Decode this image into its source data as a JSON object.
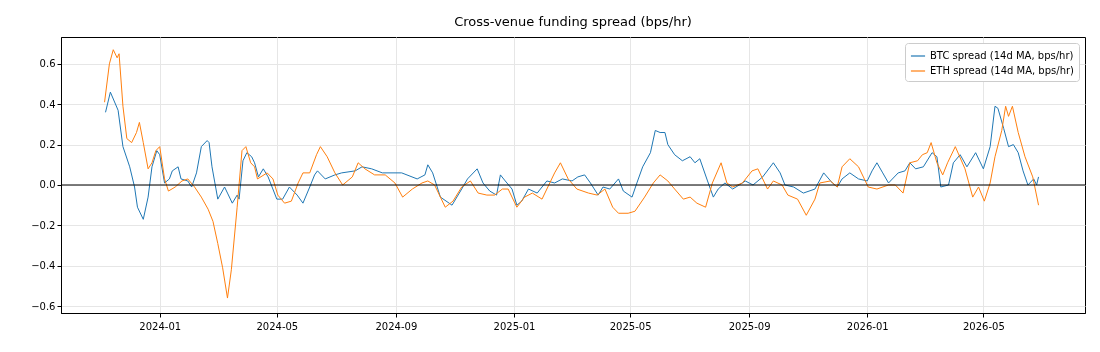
{
  "chart_data": {
    "type": "line",
    "title": "Cross-venue funding spread (bps/hr)",
    "xlim": [
      "2023-09-21",
      "2026-08-14"
    ],
    "xticks": [
      {
        "value": "2024-01",
        "label": "2024-01"
      },
      {
        "value": "2024-05",
        "label": "2024-05"
      },
      {
        "value": "2024-09",
        "label": "2024-09"
      },
      {
        "value": "2025-01",
        "label": "2025-01"
      },
      {
        "value": "2025-05",
        "label": "2025-05"
      },
      {
        "value": "2025-09",
        "label": "2025-09"
      },
      {
        "value": "2026-01",
        "label": "2026-01"
      },
      {
        "value": "2026-05",
        "label": "2026-05"
      }
    ],
    "ylim": [
      -0.634,
      0.733
    ],
    "yticks": [
      {
        "value": -0.6,
        "label": "−0.6"
      },
      {
        "value": -0.4,
        "label": "−0.4"
      },
      {
        "value": -0.2,
        "label": "−0.2"
      },
      {
        "value": 0,
        "label": "0.0"
      },
      {
        "value": 0.2,
        "label": "0.2"
      },
      {
        "value": 0.4,
        "label": "0.4"
      },
      {
        "value": 0.6,
        "label": "0.6"
      }
    ],
    "grid": true,
    "legend": "top right",
    "line_style": "solid",
    "marker": "none",
    "ref_lines": [
      {
        "axis": "y",
        "value": 0,
        "color": "#000000"
      }
    ],
    "series": [
      {
        "name": "BTC spread (14d MA, bps/hr)",
        "color": "#1f77b4",
        "x": [
          "2023-11-06",
          "2023-11-11",
          "2023-11-19",
          "2023-11-24",
          "2023-12-01",
          "2023-12-06",
          "2023-12-09",
          "2023-12-15",
          "2023-12-20",
          "2023-12-24",
          "2023-12-29",
          "2024-01-01",
          "2024-01-06",
          "2024-01-11",
          "2024-01-14",
          "2024-01-20",
          "2024-01-23",
          "2024-01-30",
          "2024-02-03",
          "2024-02-08",
          "2024-02-13",
          "2024-02-19",
          "2024-02-21",
          "2024-02-24",
          "2024-03-01",
          "2024-03-08",
          "2024-03-11",
          "2024-03-16",
          "2024-03-21",
          "2024-03-23",
          "2024-03-27",
          "2024-03-31",
          "2024-04-05",
          "2024-04-08",
          "2024-04-12",
          "2024-04-17",
          "2024-04-22",
          "2024-05-01",
          "2024-05-07",
          "2024-05-14",
          "2024-05-22",
          "2024-05-28",
          "2024-06-04",
          "2024-06-09",
          "2024-06-12",
          "2024-06-20",
          "2024-06-30",
          "2024-07-07",
          "2024-07-21",
          "2024-07-28",
          "2024-08-07",
          "2024-08-18",
          "2024-08-28",
          "2024-09-07",
          "2024-09-23",
          "2024-10-01",
          "2024-10-04",
          "2024-10-09",
          "2024-10-17",
          "2024-10-29",
          "2024-11-08",
          "2024-11-14",
          "2024-11-24",
          "2024-11-30",
          "2024-12-07",
          "2024-12-14",
          "2024-12-18",
          "2024-12-23",
          "2024-12-30",
          "2025-01-04",
          "2025-01-09",
          "2025-01-16",
          "2025-01-25",
          "2025-02-04",
          "2025-02-12",
          "2025-02-20",
          "2025-03-02",
          "2025-03-08",
          "2025-03-15",
          "2025-03-21",
          "2025-03-29",
          "2025-04-03",
          "2025-04-10",
          "2025-04-19",
          "2025-04-24",
          "2025-05-03",
          "2025-05-08",
          "2025-05-14",
          "2025-05-22",
          "2025-05-27",
          "2025-06-01",
          "2025-06-06",
          "2025-06-09",
          "2025-06-16",
          "2025-06-24",
          "2025-07-02",
          "2025-07-07",
          "2025-07-12",
          "2025-07-20",
          "2025-07-26",
          "2025-07-31",
          "2025-08-07",
          "2025-08-15",
          "2025-08-25",
          "2025-08-28",
          "2025-09-05",
          "2025-09-15",
          "2025-09-26",
          "2025-10-03",
          "2025-10-08",
          "2025-10-17",
          "2025-10-27",
          "2025-11-08",
          "2025-11-17",
          "2025-11-26",
          "2025-12-01",
          "2025-12-06",
          "2025-12-14",
          "2025-12-23",
          "2026-01-01",
          "2026-01-06",
          "2026-01-11",
          "2026-01-17",
          "2026-01-23",
          "2026-02-02",
          "2026-02-09",
          "2026-02-14",
          "2026-02-20",
          "2026-02-28",
          "2026-03-09",
          "2026-03-14",
          "2026-03-18",
          "2026-03-26",
          "2026-03-31",
          "2026-04-07",
          "2026-04-14",
          "2026-04-23",
          "2026-05-01",
          "2026-05-08",
          "2026-05-13",
          "2026-05-16",
          "2026-05-22",
          "2026-05-27",
          "2026-06-01",
          "2026-06-06",
          "2026-06-11",
          "2026-06-16",
          "2026-06-22",
          "2026-06-25",
          "2026-06-27"
        ],
        "values": [
          0.36,
          0.46,
          0.37,
          0.19,
          0.09,
          -0.01,
          -0.11,
          -0.17,
          -0.06,
          0.09,
          0.17,
          0.15,
          0.01,
          0.03,
          0.07,
          0.09,
          0.03,
          0.02,
          -0.01,
          0.06,
          0.19,
          0.22,
          0.21,
          0.09,
          -0.07,
          -0.01,
          -0.04,
          -0.09,
          -0.05,
          -0.07,
          0.12,
          0.16,
          0.14,
          0.11,
          0.04,
          0.08,
          0.04,
          -0.07,
          -0.07,
          -0.01,
          -0.05,
          -0.09,
          -0.01,
          0.05,
          0.07,
          0.03,
          0.05,
          0.06,
          0.07,
          0.09,
          0.08,
          0.06,
          0.06,
          0.06,
          0.03,
          0.05,
          0.1,
          0.06,
          -0.06,
          -0.1,
          -0.02,
          0.03,
          0.08,
          0.01,
          -0.03,
          -0.05,
          0.05,
          0.02,
          -0.02,
          -0.1,
          -0.08,
          -0.02,
          -0.04,
          0.02,
          0.01,
          0.03,
          0.02,
          0.04,
          0.05,
          0.01,
          -0.05,
          -0.01,
          -0.02,
          0.03,
          -0.03,
          -0.06,
          0.01,
          0.09,
          0.16,
          0.27,
          0.26,
          0.26,
          0.2,
          0.15,
          0.12,
          0.14,
          0.11,
          0.13,
          0.02,
          -0.06,
          -0.02,
          0.01,
          -0.02,
          0.01,
          0.02,
          0,
          0.04,
          0.11,
          0.06,
          0,
          -0.01,
          -0.04,
          -0.02,
          0.06,
          0.01,
          -0.01,
          0.03,
          0.06,
          0.03,
          0.02,
          0.07,
          0.11,
          0.06,
          0.01,
          0.06,
          0.07,
          0.11,
          0.08,
          0.09,
          0.16,
          0.14,
          -0.01,
          0,
          0.11,
          0.15,
          0.09,
          0.16,
          0.08,
          0.19,
          0.39,
          0.38,
          0.28,
          0.19,
          0.2,
          0.16,
          0.07,
          0,
          0.03,
          0,
          0.04
        ]
      },
      {
        "name": "ETH spread (14d MA, bps/hr)",
        "color": "#ff7f0e",
        "x": [
          "2023-11-05",
          "2023-11-10",
          "2023-11-14",
          "2023-11-18",
          "2023-11-20",
          "2023-11-24",
          "2023-11-28",
          "2023-12-03",
          "2023-12-08",
          "2023-12-11",
          "2023-12-15",
          "2023-12-20",
          "2023-12-24",
          "2023-12-28",
          "2024-01-01",
          "2024-01-06",
          "2024-01-10",
          "2024-01-17",
          "2024-01-24",
          "2024-01-30",
          "2024-02-06",
          "2024-02-13",
          "2024-02-20",
          "2024-02-25",
          "2024-03-01",
          "2024-03-06",
          "2024-03-11",
          "2024-03-15",
          "2024-03-21",
          "2024-03-26",
          "2024-03-30",
          "2024-04-04",
          "2024-04-08",
          "2024-04-11",
          "2024-04-21",
          "2024-04-27",
          "2024-05-02",
          "2024-05-09",
          "2024-05-16",
          "2024-05-23",
          "2024-05-28",
          "2024-06-04",
          "2024-06-11",
          "2024-06-15",
          "2024-06-22",
          "2024-06-30",
          "2024-07-08",
          "2024-07-18",
          "2024-07-24",
          "2024-07-31",
          "2024-08-10",
          "2024-08-21",
          "2024-08-31",
          "2024-09-08",
          "2024-09-18",
          "2024-09-28",
          "2024-10-04",
          "2024-10-11",
          "2024-10-22",
          "2024-10-30",
          "2024-11-08",
          "2024-11-17",
          "2024-11-25",
          "2024-12-04",
          "2024-12-12",
          "2024-12-20",
          "2024-12-26",
          "2025-01-04",
          "2025-01-12",
          "2025-01-20",
          "2025-01-30",
          "2025-02-05",
          "2025-02-12",
          "2025-02-18",
          "2025-02-26",
          "2025-03-07",
          "2025-03-19",
          "2025-03-28",
          "2025-04-05",
          "2025-04-13",
          "2025-04-19",
          "2025-04-29",
          "2025-05-06",
          "2025-05-16",
          "2025-05-25",
          "2025-06-01",
          "2025-06-09",
          "2025-06-16",
          "2025-06-25",
          "2025-07-02",
          "2025-07-09",
          "2025-07-18",
          "2025-07-25",
          "2025-08-03",
          "2025-08-09",
          "2025-08-15",
          "2025-08-25",
          "2025-09-04",
          "2025-09-10",
          "2025-09-20",
          "2025-09-26",
          "2025-10-05",
          "2025-10-11",
          "2025-10-21",
          "2025-10-30",
          "2025-11-08",
          "2025-11-13",
          "2025-11-24",
          "2025-12-01",
          "2025-12-06",
          "2025-12-14",
          "2025-12-23",
          "2026-01-02",
          "2026-01-11",
          "2026-01-23",
          "2026-01-30",
          "2026-02-07",
          "2026-02-14",
          "2026-02-22",
          "2026-02-27",
          "2026-03-04",
          "2026-03-08",
          "2026-03-14",
          "2026-03-20",
          "2026-03-25",
          "2026-04-02",
          "2026-04-12",
          "2026-04-20",
          "2026-04-26",
          "2026-05-02",
          "2026-05-08",
          "2026-05-13",
          "2026-05-20",
          "2026-05-24",
          "2026-05-27",
          "2026-05-31",
          "2026-06-06",
          "2026-06-13",
          "2026-06-21",
          "2026-06-27"
        ],
        "values": [
          0.41,
          0.6,
          0.67,
          0.63,
          0.65,
          0.39,
          0.23,
          0.21,
          0.26,
          0.31,
          0.21,
          0.08,
          0.11,
          0.17,
          0.19,
          0.03,
          -0.03,
          -0.01,
          0.02,
          0.03,
          -0.01,
          -0.06,
          -0.12,
          -0.18,
          -0.29,
          -0.41,
          -0.56,
          -0.42,
          -0.11,
          0.17,
          0.19,
          0.11,
          0.09,
          0.03,
          0.06,
          0.03,
          -0.05,
          -0.09,
          -0.08,
          0.01,
          0.06,
          0.06,
          0.15,
          0.19,
          0.14,
          0.06,
          0,
          0.04,
          0.11,
          0.08,
          0.05,
          0.05,
          0.01,
          -0.06,
          -0.02,
          0.01,
          0.02,
          0,
          -0.11,
          -0.08,
          -0.01,
          0.02,
          -0.04,
          -0.05,
          -0.05,
          -0.02,
          -0.02,
          -0.11,
          -0.06,
          -0.04,
          -0.07,
          -0.01,
          0.06,
          0.11,
          0.03,
          -0.02,
          -0.04,
          -0.05,
          -0.02,
          -0.11,
          -0.14,
          -0.14,
          -0.13,
          -0.06,
          0.01,
          0.05,
          0.02,
          -0.02,
          -0.07,
          -0.06,
          -0.09,
          -0.11,
          0.01,
          0.11,
          0.01,
          -0.01,
          0.01,
          0.07,
          0.08,
          -0.02,
          0.02,
          0,
          -0.05,
          -0.07,
          -0.15,
          -0.07,
          0.01,
          0.02,
          -0.01,
          0.09,
          0.13,
          0.09,
          -0.01,
          -0.02,
          0,
          0,
          -0.04,
          0.11,
          0.12,
          0.15,
          0.16,
          0.21,
          0.11,
          0.05,
          0.11,
          0.19,
          0.08,
          -0.06,
          -0.01,
          -0.08,
          0.01,
          0.14,
          0.27,
          0.39,
          0.34,
          0.39,
          0.26,
          0.14,
          0.04,
          -0.1
        ]
      }
    ]
  }
}
